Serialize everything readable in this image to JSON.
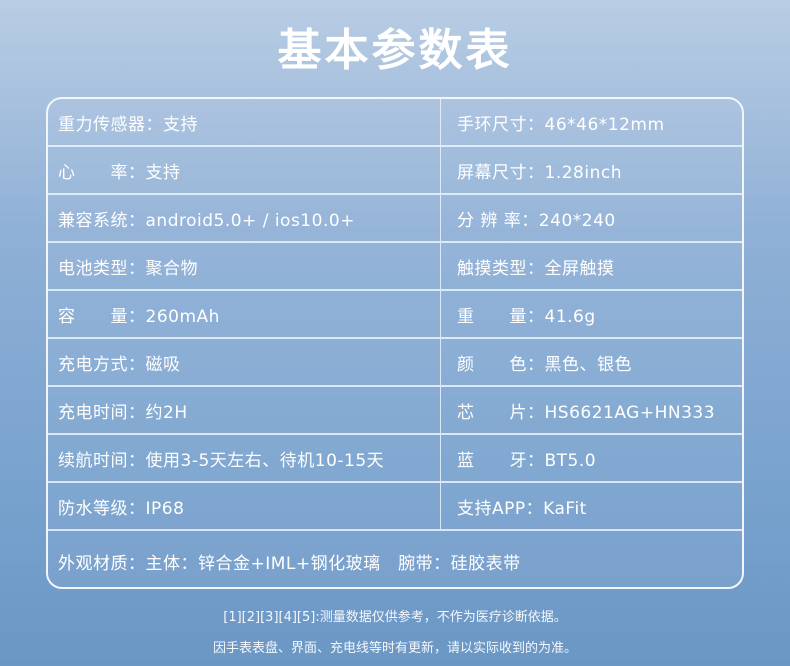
{
  "title": "基本参数表",
  "rows": [
    [
      "重力传感器：支持",
      "手环尺寸：46*46*12mm"
    ],
    [
      "心　　率：支持",
      "屏幕尺寸：1.28inch"
    ],
    [
      "兼容系统：android5.0+ / ios10.0+",
      "分 辨 率：240*240"
    ],
    [
      "电池类型：聚合物",
      "触摸类型：全屏触摸"
    ],
    [
      "容　　量：260mAh",
      "重　　量：41.6g"
    ],
    [
      "充电方式：磁吸",
      "颜　　色：黑色、银色"
    ],
    [
      "充电时间：约2H",
      "芯　　片：HS6621AG+HN333"
    ],
    [
      "续航时间：使用3-5天左右、待机10-15天",
      "蓝　　牙：BT5.0"
    ],
    [
      "防水等级：IP68",
      "支持APP：KaFit"
    ]
  ],
  "last_row": "外观材质：主体：锌合金+IML+钢化玻璃　腕带：硅胶表带",
  "notes": [
    "[1][2][3][4][5]:测量数据仅供参考，不作为医疗诊断依据。",
    "因手表表盘、界面、充电线等时有更新，请以实际收到的为准。"
  ]
}
